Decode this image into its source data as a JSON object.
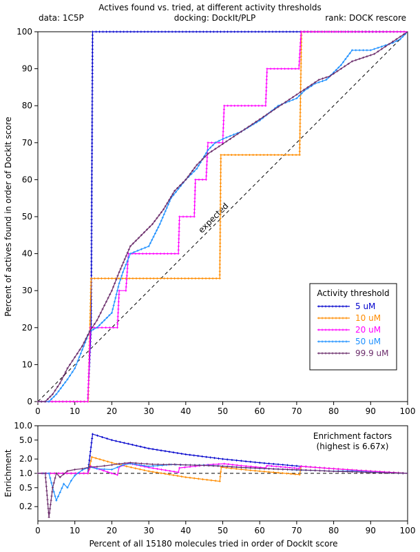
{
  "header": {
    "title": "Actives found vs. tried, at different activity thresholds",
    "data_label": "data: 1C5P",
    "docking_label": "docking: DockIt/PLP",
    "rank_label": "rank: DOCK rescore"
  },
  "chart_data": [
    {
      "type": "line",
      "xlabel": "",
      "ylabel": "Percent of actives found in order of DockIt score",
      "xlim": [
        0,
        100
      ],
      "ylim": [
        0,
        100
      ],
      "x_ticks": [
        "0",
        "10",
        "20",
        "30",
        "40",
        "50",
        "60",
        "70",
        "80",
        "90",
        "100"
      ],
      "y_ticks": [
        "0",
        "10",
        "20",
        "30",
        "40",
        "50",
        "60",
        "70",
        "80",
        "90",
        "100"
      ],
      "grid": false,
      "legend_placement": "bottom-right",
      "legend_title": "Activity threshold",
      "reference_line": {
        "label": "expected",
        "points": [
          [
            0,
            0
          ],
          [
            100,
            100
          ]
        ]
      },
      "series": [
        {
          "name": "5 uM",
          "color": "#0000cc",
          "points": [
            [
              0,
              0
            ],
            [
              13.5,
              0
            ],
            [
              14.4,
              20
            ],
            [
              14.8,
              100
            ],
            [
              100,
              100
            ]
          ]
        },
        {
          "name": "10 uM",
          "color": "#ff8c00",
          "points": [
            [
              0,
              0
            ],
            [
              13.6,
              0
            ],
            [
              14.4,
              33.3
            ],
            [
              49.2,
              33.3
            ],
            [
              49.5,
              66.7
            ],
            [
              70.8,
              66.7
            ],
            [
              71.3,
              100
            ],
            [
              100,
              100
            ]
          ]
        },
        {
          "name": "20 uM",
          "color": "#ff00ff",
          "points": [
            [
              0,
              0
            ],
            [
              13.5,
              0
            ],
            [
              14.2,
              20
            ],
            [
              21.5,
              20
            ],
            [
              22,
              30
            ],
            [
              23.8,
              30
            ],
            [
              24.5,
              40
            ],
            [
              38,
              40
            ],
            [
              38.3,
              50
            ],
            [
              42.3,
              50
            ],
            [
              42.6,
              60
            ],
            [
              45.5,
              60
            ],
            [
              46,
              70
            ],
            [
              50,
              70
            ],
            [
              50.4,
              80
            ],
            [
              61.6,
              80
            ],
            [
              62,
              90
            ],
            [
              70.6,
              90
            ],
            [
              71.2,
              100
            ],
            [
              100,
              100
            ]
          ]
        },
        {
          "name": "50 uM",
          "color": "#1e90ff",
          "points": [
            [
              0,
              0
            ],
            [
              3,
              0
            ],
            [
              5,
              2
            ],
            [
              8,
              6
            ],
            [
              10,
              9
            ],
            [
              12,
              14
            ],
            [
              14,
              19
            ],
            [
              16,
              20
            ],
            [
              18,
              22
            ],
            [
              20,
              24
            ],
            [
              22,
              32
            ],
            [
              23,
              35
            ],
            [
              25,
              40
            ],
            [
              30,
              42
            ],
            [
              33,
              48
            ],
            [
              36,
              55
            ],
            [
              40,
              60
            ],
            [
              43,
              63
            ],
            [
              46,
              68
            ],
            [
              48,
              70
            ],
            [
              50,
              71
            ],
            [
              55,
              73
            ],
            [
              60,
              76
            ],
            [
              65,
              80
            ],
            [
              70,
              82
            ],
            [
              72,
              84
            ],
            [
              75,
              86
            ],
            [
              78,
              87
            ],
            [
              80,
              89
            ],
            [
              82,
              91
            ],
            [
              85,
              95
            ],
            [
              90,
              95
            ],
            [
              93,
              96
            ],
            [
              96,
              97
            ],
            [
              98,
              98
            ],
            [
              100,
              100
            ]
          ]
        },
        {
          "name": "99.9 uM",
          "color": "#6b2d6b",
          "points": [
            [
              0,
              0
            ],
            [
              2,
              0
            ],
            [
              4,
              2
            ],
            [
              6,
              5
            ],
            [
              8,
              9
            ],
            [
              10,
              12
            ],
            [
              12,
              15
            ],
            [
              14,
              19
            ],
            [
              16,
              22
            ],
            [
              18,
              26
            ],
            [
              20,
              30
            ],
            [
              22,
              35
            ],
            [
              25,
              42
            ],
            [
              28,
              45
            ],
            [
              31,
              48
            ],
            [
              34,
              52
            ],
            [
              37,
              57
            ],
            [
              40,
              60
            ],
            [
              43,
              64
            ],
            [
              46,
              67
            ],
            [
              49,
              69
            ],
            [
              52,
              71
            ],
            [
              55,
              73
            ],
            [
              58,
              75
            ],
            [
              61,
              77
            ],
            [
              64,
              79
            ],
            [
              67,
              81
            ],
            [
              70,
              83
            ],
            [
              73,
              85
            ],
            [
              76,
              87
            ],
            [
              79,
              88
            ],
            [
              82,
              90
            ],
            [
              85,
              92
            ],
            [
              88,
              93
            ],
            [
              91,
              94
            ],
            [
              94,
              96
            ],
            [
              97,
              98
            ],
            [
              100,
              100
            ]
          ]
        }
      ]
    },
    {
      "type": "line",
      "title": "Enrichment factors",
      "subtitle": "(highest is 6.67x)",
      "xlabel": "Percent of all 15180 molecules tried in order of DockIt score",
      "ylabel": "Enrichment",
      "xlim": [
        0,
        100
      ],
      "ylim": [
        0.1,
        10
      ],
      "log_y": true,
      "x_ticks": [
        "0",
        "10",
        "20",
        "30",
        "40",
        "50",
        "60",
        "70",
        "80",
        "90",
        "100"
      ],
      "y_ticks": [
        {
          "label": "10.0",
          "value": 10
        },
        {
          "label": "5.0",
          "value": 5
        },
        {
          "label": "2.0",
          "value": 2
        },
        {
          "label": "1.0",
          "value": 1
        },
        {
          "label": "0.5",
          "value": 0.5
        },
        {
          "label": "0.2",
          "value": 0.2
        }
      ],
      "grid": false,
      "reference_line": {
        "label": "",
        "points": [
          [
            0,
            1
          ],
          [
            100,
            1
          ]
        ]
      },
      "series": [
        {
          "name": "5 uM",
          "color": "#0000cc",
          "points": [
            [
              0,
              1
            ],
            [
              13.5,
              1
            ],
            [
              14.8,
              6.67
            ],
            [
              20,
              5
            ],
            [
              30,
              3.33
            ],
            [
              40,
              2.5
            ],
            [
              50,
              2
            ],
            [
              60,
              1.67
            ],
            [
              70,
              1.43
            ],
            [
              80,
              1.25
            ],
            [
              90,
              1.11
            ],
            [
              100,
              1
            ]
          ]
        },
        {
          "name": "10 uM",
          "color": "#ff8c00",
          "points": [
            [
              0,
              1
            ],
            [
              13.6,
              1
            ],
            [
              14.6,
              2.2
            ],
            [
              20,
              1.67
            ],
            [
              24,
              1.4
            ],
            [
              30,
              1.11
            ],
            [
              40,
              0.83
            ],
            [
              49.2,
              0.68
            ],
            [
              49.6,
              1.34
            ],
            [
              55,
              1.21
            ],
            [
              60,
              1.11
            ],
            [
              65,
              1.03
            ],
            [
              70.8,
              0.94
            ],
            [
              71.2,
              1.4
            ],
            [
              80,
              1.25
            ],
            [
              90,
              1.11
            ],
            [
              100,
              1
            ]
          ]
        },
        {
          "name": "20 uM",
          "color": "#ff00ff",
          "points": [
            [
              0,
              1
            ],
            [
              13.5,
              1
            ],
            [
              14.3,
              1.4
            ],
            [
              20,
              1.0
            ],
            [
              21.5,
              0.93
            ],
            [
              22,
              1.36
            ],
            [
              24.5,
              1.63
            ],
            [
              30,
              1.33
            ],
            [
              38,
              1.05
            ],
            [
              38.3,
              1.3
            ],
            [
              42.6,
              1.41
            ],
            [
              46,
              1.52
            ],
            [
              50.4,
              1.59
            ],
            [
              55,
              1.45
            ],
            [
              61.6,
              1.3
            ],
            [
              62,
              1.45
            ],
            [
              70.6,
              1.27
            ],
            [
              71.2,
              1.4
            ],
            [
              80,
              1.25
            ],
            [
              90,
              1.11
            ],
            [
              100,
              1
            ]
          ]
        },
        {
          "name": "50 uM",
          "color": "#1e90ff",
          "points": [
            [
              0,
              1
            ],
            [
              3,
              1
            ],
            [
              4,
              0.5
            ],
            [
              5,
              0.27
            ],
            [
              6,
              0.4
            ],
            [
              7,
              0.6
            ],
            [
              8,
              0.5
            ],
            [
              9,
              0.7
            ],
            [
              10,
              0.9
            ],
            [
              12,
              1.17
            ],
            [
              14,
              1.36
            ],
            [
              16,
              1.25
            ],
            [
              18,
              1.22
            ],
            [
              20,
              1.2
            ],
            [
              23,
              1.5
            ],
            [
              25,
              1.6
            ],
            [
              30,
              1.4
            ],
            [
              36,
              1.53
            ],
            [
              40,
              1.5
            ],
            [
              46,
              1.48
            ],
            [
              50,
              1.42
            ],
            [
              55,
              1.33
            ],
            [
              60,
              1.27
            ],
            [
              65,
              1.23
            ],
            [
              70,
              1.17
            ],
            [
              75,
              1.15
            ],
            [
              80,
              1.11
            ],
            [
              85,
              1.12
            ],
            [
              90,
              1.06
            ],
            [
              95,
              1.02
            ],
            [
              100,
              1
            ]
          ]
        },
        {
          "name": "99.9 uM",
          "color": "#6b2d6b",
          "points": [
            [
              0,
              1
            ],
            [
              2,
              1
            ],
            [
              3,
              0.12
            ],
            [
              4,
              0.5
            ],
            [
              5,
              1.0
            ],
            [
              6,
              0.83
            ],
            [
              8,
              1.12
            ],
            [
              10,
              1.2
            ],
            [
              12,
              1.25
            ],
            [
              14,
              1.36
            ],
            [
              16,
              1.38
            ],
            [
              18,
              1.44
            ],
            [
              20,
              1.5
            ],
            [
              22,
              1.59
            ],
            [
              25,
              1.68
            ],
            [
              28,
              1.61
            ],
            [
              31,
              1.55
            ],
            [
              34,
              1.53
            ],
            [
              37,
              1.54
            ],
            [
              40,
              1.5
            ],
            [
              45,
              1.47
            ],
            [
              50,
              1.41
            ],
            [
              55,
              1.33
            ],
            [
              60,
              1.28
            ],
            [
              65,
              1.22
            ],
            [
              70,
              1.19
            ],
            [
              75,
              1.15
            ],
            [
              80,
              1.1
            ],
            [
              85,
              1.08
            ],
            [
              90,
              1.04
            ],
            [
              95,
              1.02
            ],
            [
              100,
              1
            ]
          ]
        }
      ]
    }
  ]
}
